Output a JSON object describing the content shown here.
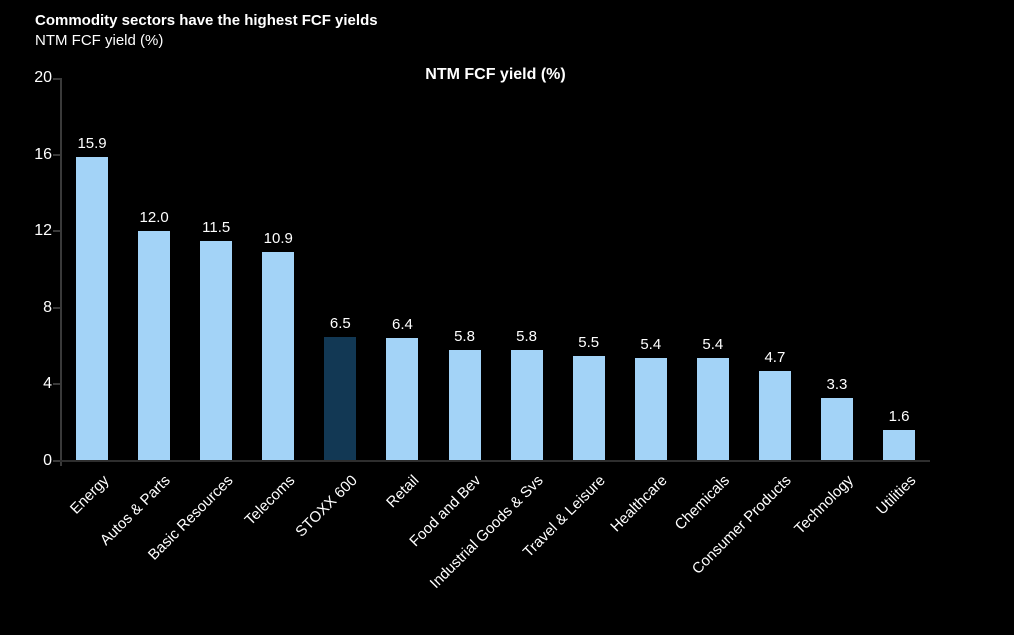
{
  "header": {
    "title": "Commodity sectors have the highest FCF yields",
    "subtitle": "NTM FCF yield (%)"
  },
  "chart_data": {
    "type": "bar",
    "title": "NTM FCF yield (%)",
    "categories": [
      "Energy",
      "Autos & Parts",
      "Basic Resources",
      "Telecoms",
      "STOXX 600",
      "Retail",
      "Food and Bev",
      "Industrial Goods & Svs",
      "Travel & Leisure",
      "Healthcare",
      "Chemicals",
      "Consumer Products",
      "Technology",
      "Utilities"
    ],
    "values": [
      15.9,
      12.0,
      11.5,
      10.9,
      6.5,
      6.4,
      5.8,
      5.8,
      5.5,
      5.4,
      5.4,
      4.7,
      3.3,
      1.6
    ],
    "value_labels": [
      "15.9",
      "12.0",
      "11.5",
      "10.9",
      "6.5",
      "6.4",
      "5.8",
      "5.8",
      "5.5",
      "5.4",
      "5.4",
      "4.7",
      "3.3",
      "1.6"
    ],
    "highlight_category": "STOXX 600",
    "highlight_index": 4,
    "yticks": [
      0,
      4,
      8,
      12,
      16,
      20
    ],
    "ytick_labels": [
      "0",
      "4",
      "8",
      "12",
      "16",
      "20"
    ],
    "ylim": [
      0,
      20
    ],
    "xlabel": "",
    "ylabel": "NTM FCF yield (%)",
    "grid": "off",
    "legend": "none",
    "colors": {
      "background": "#000000",
      "bar": "#a3d3f7",
      "highlight_bar": "#123854",
      "text": "#ffffff",
      "axis": "#3a3a3a"
    }
  }
}
